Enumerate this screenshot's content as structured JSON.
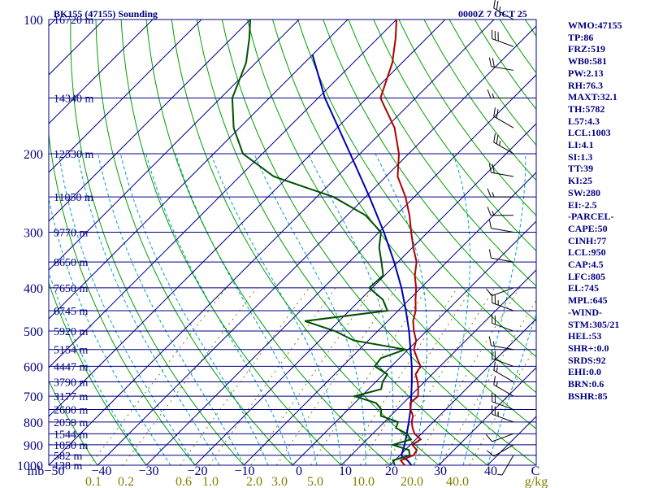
{
  "header": {
    "station": "BK155 (47155) Sounding",
    "time": "0000Z  7 OCT 25"
  },
  "stats": [
    "WMO:47155",
    "TP:86",
    "FRZ:519",
    "WB0:581",
    "PW:2.13",
    "RH:76.3",
    "MAXT:32.1",
    "TH:5782",
    "L57:4.3",
    "LCL:1003",
    "LI:4.1",
    "SI:1.3",
    "TT:39",
    "KI:25",
    "SW:280",
    "EI:-2.5",
    "-PARCEL-",
    "CAPE:50",
    "CINH:77",
    "LCL:950",
    "CAP:4.5",
    "LFC:805",
    "EL:745",
    "MPL:645",
    "-WIND-",
    "STM:305/21",
    "HEL:53",
    "SHR+:0.0",
    "SRDS:92",
    "EHI:0.0",
    "BRN:0.6",
    "BSHR:85"
  ],
  "colors": {
    "isobar": "#000080",
    "isotherm": "#000080",
    "dry_adiabat": "#00a000",
    "moist_adiabat": "#00a0c0",
    "mixing_ratio": "#808000",
    "temperature": "#b00000",
    "dewpoint": "#005000",
    "parcel": "#0000b0",
    "text": "#000080"
  },
  "chart_data": {
    "type": "skew-t",
    "title": "BK155 (47155) Sounding",
    "pressure_unit": "mb",
    "pressure_range": [
      100,
      1000
    ],
    "temperature_range": [
      -50,
      50
    ],
    "pressure_labels": [
      100,
      200,
      300,
      400,
      500,
      600,
      700,
      800,
      900,
      1000
    ],
    "isobar_levels": [
      100,
      150,
      200,
      250,
      300,
      350,
      400,
      450,
      500,
      550,
      600,
      650,
      700,
      750,
      800,
      850,
      900,
      950,
      1000
    ],
    "height_labels": [
      {
        "p": 100,
        "h": "16720 m"
      },
      {
        "p": 150,
        "h": "14340 m"
      },
      {
        "p": 200,
        "h": "12530 m"
      },
      {
        "p": 250,
        "h": "11050 m"
      },
      {
        "p": 300,
        "h": "9770 m"
      },
      {
        "p": 350,
        "h": "8650 m"
      },
      {
        "p": 400,
        "h": "7650 m"
      },
      {
        "p": 450,
        "h": "6745 m"
      },
      {
        "p": 500,
        "h": "5920 m"
      },
      {
        "p": 550,
        "h": "5154 m"
      },
      {
        "p": 600,
        "h": "4447 m"
      },
      {
        "p": 650,
        "h": "3790 m"
      },
      {
        "p": 700,
        "h": "3177 m"
      },
      {
        "p": 750,
        "h": "2600 m"
      },
      {
        "p": 800,
        "h": "2059 m"
      },
      {
        "p": 850,
        "h": "1544 m"
      },
      {
        "p": 900,
        "h": "1050 m"
      },
      {
        "p": 950,
        "h": "582 m"
      },
      {
        "p": 1000,
        "h": "138 m"
      }
    ],
    "temperature_ticks": [
      "mb",
      "−50",
      "−40",
      "−30",
      "−20",
      "−10",
      "0",
      "10",
      "20",
      "30",
      "40",
      "C"
    ],
    "mixing_ratio_labels": [
      "0.1",
      "0.2",
      "0.6",
      "1.0",
      "2.0",
      "3.0",
      "5.0",
      "10.0",
      "20.0",
      "40.0",
      "g/kg"
    ],
    "temperature_profile": [
      [
        1004,
        24.0
      ],
      [
        1000,
        23.0
      ],
      [
        975,
        21.2
      ],
      [
        950,
        22.8
      ],
      [
        925,
        22.4
      ],
      [
        900,
        20.4
      ],
      [
        875,
        21.0
      ],
      [
        850,
        18.6
      ],
      [
        825,
        17.0
      ],
      [
        800,
        15.6
      ],
      [
        775,
        14.6
      ],
      [
        750,
        12.8
      ],
      [
        725,
        11.4
      ],
      [
        700,
        11.6
      ],
      [
        675,
        10.2
      ],
      [
        650,
        8.6
      ],
      [
        625,
        6.6
      ],
      [
        600,
        6.0
      ],
      [
        575,
        3.6
      ],
      [
        550,
        1.2
      ],
      [
        525,
        -0.2
      ],
      [
        500,
        -2.6
      ],
      [
        475,
        -4.8
      ],
      [
        450,
        -6.4
      ],
      [
        425,
        -8.7
      ],
      [
        400,
        -11.0
      ],
      [
        375,
        -13.8
      ],
      [
        350,
        -16.2
      ],
      [
        325,
        -19.8
      ],
      [
        300,
        -23.4
      ],
      [
        275,
        -27.2
      ],
      [
        250,
        -31.8
      ],
      [
        225,
        -37.6
      ],
      [
        200,
        -42.0
      ],
      [
        175,
        -48.2
      ],
      [
        150,
        -57.2
      ],
      [
        125,
        -62.0
      ],
      [
        110,
        -66.4
      ],
      [
        100,
        -70.0
      ]
    ],
    "dewpoint_profile": [
      [
        1004,
        21.6
      ],
      [
        1000,
        21.0
      ],
      [
        975,
        19.6
      ],
      [
        950,
        22.0
      ],
      [
        925,
        20.8
      ],
      [
        900,
        16.4
      ],
      [
        875,
        19.0
      ],
      [
        850,
        17.0
      ],
      [
        825,
        13.6
      ],
      [
        800,
        12.8
      ],
      [
        775,
        8.0
      ],
      [
        750,
        6.8
      ],
      [
        725,
        4.4
      ],
      [
        700,
        -1.4
      ],
      [
        675,
        2.6
      ],
      [
        650,
        1.4
      ],
      [
        625,
        0.8
      ],
      [
        600,
        -3.4
      ],
      [
        575,
        -3.8
      ],
      [
        550,
        -0.6
      ],
      [
        525,
        -13.0
      ],
      [
        500,
        -18.8
      ],
      [
        475,
        -27.0
      ],
      [
        450,
        -12.2
      ],
      [
        425,
        -15.4
      ],
      [
        400,
        -20.6
      ],
      [
        375,
        -20.3
      ],
      [
        350,
        -23.4
      ],
      [
        325,
        -26.8
      ],
      [
        300,
        -29.6
      ],
      [
        275,
        -36.2
      ],
      [
        250,
        -46.6
      ],
      [
        225,
        -63.0
      ],
      [
        200,
        -74.0
      ],
      [
        175,
        -81.2
      ],
      [
        150,
        -87.6
      ],
      [
        125,
        -92.0
      ],
      [
        110,
        -96.4
      ],
      [
        100,
        -100.0
      ]
    ],
    "parcel_profile": [
      [
        1000,
        24.4
      ],
      [
        975,
        22.6
      ],
      [
        960,
        21.0
      ],
      [
        950,
        20.3
      ],
      [
        900,
        18.8
      ],
      [
        850,
        17.0
      ],
      [
        800,
        15.0
      ],
      [
        750,
        12.8
      ],
      [
        700,
        10.2
      ],
      [
        650,
        7.4
      ],
      [
        600,
        4.2
      ],
      [
        550,
        0.5
      ],
      [
        500,
        -3.6
      ],
      [
        450,
        -8.4
      ],
      [
        400,
        -14.0
      ],
      [
        350,
        -20.8
      ],
      [
        300,
        -29.0
      ],
      [
        250,
        -39.2
      ],
      [
        200,
        -52.0
      ],
      [
        150,
        -68.6
      ],
      [
        120,
        -80.0
      ]
    ],
    "wind_barbs": [
      {
        "p": 100,
        "dir": 300,
        "spd": 25
      },
      {
        "p": 115,
        "dir": 290,
        "spd": 30
      },
      {
        "p": 130,
        "dir": 280,
        "spd": 20
      },
      {
        "p": 150,
        "dir": 270,
        "spd": 15
      },
      {
        "p": 175,
        "dir": 300,
        "spd": 20
      },
      {
        "p": 200,
        "dir": 300,
        "spd": 25
      },
      {
        "p": 225,
        "dir": 280,
        "spd": 20
      },
      {
        "p": 250,
        "dir": 270,
        "spd": 15
      },
      {
        "p": 275,
        "dir": 270,
        "spd": 15
      },
      {
        "p": 300,
        "dir": 280,
        "spd": 10
      },
      {
        "p": 350,
        "dir": 280,
        "spd": 10
      },
      {
        "p": 400,
        "dir": 250,
        "spd": 10
      },
      {
        "p": 450,
        "dir": 290,
        "spd": 25
      },
      {
        "p": 500,
        "dir": 290,
        "spd": 20
      },
      {
        "p": 550,
        "dir": 280,
        "spd": 15
      },
      {
        "p": 600,
        "dir": 290,
        "spd": 20
      },
      {
        "p": 650,
        "dir": 300,
        "spd": 15
      },
      {
        "p": 700,
        "dir": 300,
        "spd": 15
      },
      {
        "p": 750,
        "dir": 290,
        "spd": 20
      },
      {
        "p": 800,
        "dir": 290,
        "spd": 25
      },
      {
        "p": 850,
        "dir": 250,
        "spd": 10
      },
      {
        "p": 900,
        "dir": 240,
        "spd": 10
      },
      {
        "p": 950,
        "dir": 210,
        "spd": 5
      }
    ]
  }
}
